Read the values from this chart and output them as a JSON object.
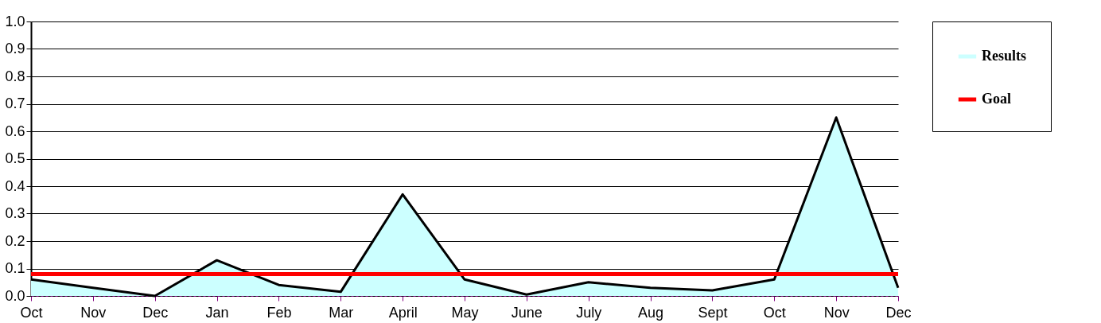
{
  "chart_data": {
    "type": "area",
    "categories": [
      "Oct",
      "Nov",
      "Dec",
      "Jan",
      "Feb",
      "Mar",
      "April",
      "May",
      "June",
      "July",
      "Aug",
      "Sept",
      "Oct",
      "Nov",
      "Dec"
    ],
    "series": [
      {
        "name": "Results",
        "color": "#ccffff",
        "values": [
          0.06,
          0.03,
          0.0,
          0.13,
          0.04,
          0.015,
          0.37,
          0.06,
          0.005,
          0.05,
          0.03,
          0.02,
          0.06,
          0.65,
          0.03
        ]
      },
      {
        "name": "Goal",
        "type": "line",
        "color": "#ff0000",
        "values": [
          0.08,
          0.08,
          0.08,
          0.08,
          0.08,
          0.08,
          0.08,
          0.08,
          0.08,
          0.08,
          0.08,
          0.08,
          0.08,
          0.08,
          0.08
        ]
      }
    ],
    "ylim": [
      0,
      1
    ],
    "yticks": [
      {
        "value": 0,
        "label": "0.0"
      },
      0.1,
      0.2,
      0.3,
      0.4,
      0.5,
      0.6,
      0.7,
      0.8,
      0.9,
      {
        "value": 1,
        "label": "1.0"
      }
    ],
    "grid": "y",
    "legend": "right"
  }
}
